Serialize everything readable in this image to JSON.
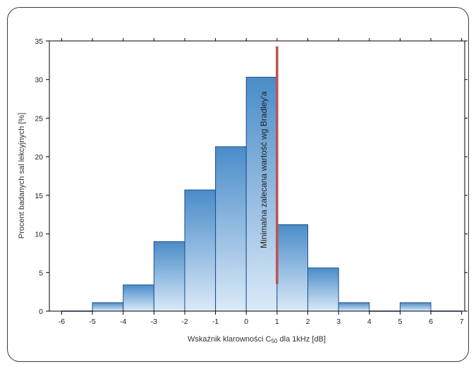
{
  "chart_data": {
    "type": "bar",
    "title": "",
    "xlabel_pre": "Wskaźnik klarowności C",
    "xlabel_sub": "50",
    "xlabel_post": " dla 1kHz [dB]",
    "ylabel": "Procent badanych sal lekcyjnych [%]",
    "xlim": [
      -6.4,
      7.1
    ],
    "ylim": [
      0,
      35
    ],
    "xticks": [
      "-6",
      "-5",
      "-4",
      "-3",
      "-2",
      "-1",
      "0",
      "1",
      "2",
      "3",
      "4",
      "5",
      "6",
      "7"
    ],
    "yticks": [
      "0",
      "5",
      "10",
      "15",
      "20",
      "25",
      "30",
      "35"
    ],
    "bins": [
      {
        "x0": -6,
        "x1": -5,
        "value": 0
      },
      {
        "x0": -5,
        "x1": -4,
        "value": 1.1
      },
      {
        "x0": -4,
        "x1": -3,
        "value": 3.4
      },
      {
        "x0": -3,
        "x1": -2,
        "value": 9.0
      },
      {
        "x0": -2,
        "x1": -1,
        "value": 15.7
      },
      {
        "x0": -1,
        "x1": 0,
        "value": 21.3
      },
      {
        "x0": 0,
        "x1": 1,
        "value": 30.3
      },
      {
        "x0": 1,
        "x1": 2,
        "value": 11.2
      },
      {
        "x0": 2,
        "x1": 3,
        "value": 5.6
      },
      {
        "x0": 3,
        "x1": 4,
        "value": 1.1
      },
      {
        "x0": 4,
        "x1": 5,
        "value": 0
      },
      {
        "x0": 5,
        "x1": 6,
        "value": 1.1
      },
      {
        "x0": 6,
        "x1": 7,
        "value": 0
      }
    ],
    "reference_line": {
      "x": 1,
      "y_range": [
        3.5,
        34.3
      ],
      "label": "Minimalna zalecana wartość wg Bradley'a",
      "color": "#c0504d"
    },
    "bar_color_top": "#4a8cc9",
    "bar_color_bottom": "#dbeaf8",
    "bar_edge_color": "#1f4e8c",
    "grid": false
  }
}
